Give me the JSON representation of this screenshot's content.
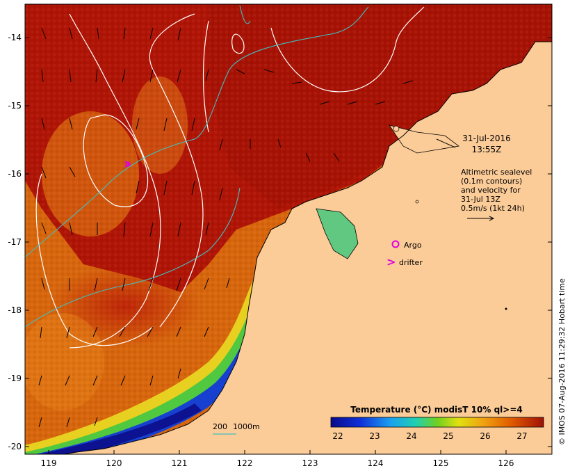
{
  "map": {
    "date_line1": "31-Jul-2016",
    "date_line2": "13:55Z",
    "info_lines": [
      "Altimetric sealevel",
      "(0.1m contours)",
      "and velocity for",
      "31-Jul 13Z",
      "0.5m/s (1kt 24h)"
    ],
    "legend_argo": "Argo",
    "legend_drifter": "drifter",
    "legend_drifter_symbol": ">",
    "depth_label_200": "200",
    "depth_label_1000": "1000m",
    "copyright": "© IMOS 07-Aug-2016 11:29:32 Hobart time",
    "colorbar_title": "Temperature (°C) modisT 10% ql>=4",
    "colorbar_ticks": [
      "22",
      "23",
      "24",
      "25",
      "26",
      "27"
    ],
    "x_ticks": [
      "119",
      "120",
      "121",
      "122",
      "123",
      "124",
      "125",
      "126"
    ],
    "y_ticks": [
      "-14",
      "-15",
      "-16",
      "-17",
      "-18",
      "-19",
      "-20"
    ],
    "colors": {
      "land": "#fbcb98",
      "sst_warm": "#b01405",
      "sst_mid": "#e05a00",
      "sst_orange": "#f29a10",
      "sst_cool": "#2d7ee0",
      "argo": "#e000e0",
      "contour": "#ffffff",
      "isobath": "#40c0c0"
    }
  }
}
